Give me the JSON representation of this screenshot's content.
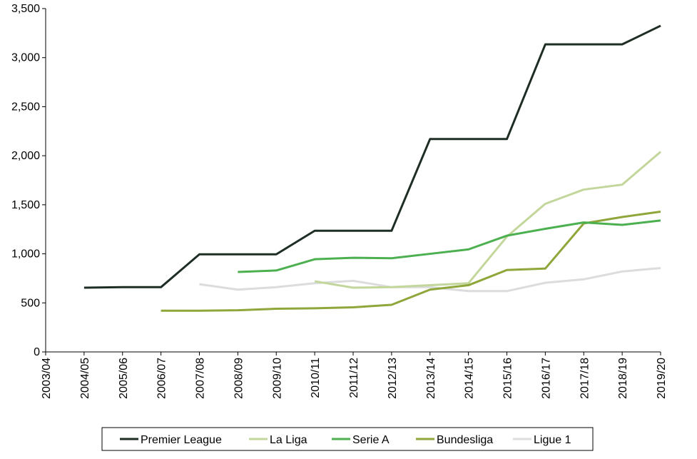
{
  "chart_data": {
    "type": "line",
    "title": "",
    "xlabel": "",
    "ylabel": "",
    "categories": [
      "2003/04",
      "2004/05",
      "2005/06",
      "2006/07",
      "2007/08",
      "2008/09",
      "2009/10",
      "2010/11",
      "2011/12",
      "2012/13",
      "2013/14",
      "2014/15",
      "2015/16",
      "2016/17",
      "2017/18",
      "2018/19",
      "2019/20"
    ],
    "ylim": [
      0,
      3500
    ],
    "yticks": [
      0,
      500,
      1000,
      1500,
      2000,
      2500,
      3000,
      3500
    ],
    "ytick_labels": [
      "0",
      "500",
      "1,000",
      "1,500",
      "2,000",
      "2,500",
      "3,000",
      "3,500"
    ],
    "grid": false,
    "legend_position": "bottom",
    "series": [
      {
        "name": "Premier League",
        "color": "#1f2e25",
        "values": [
          null,
          655,
          660,
          660,
          995,
          995,
          995,
          1235,
          1235,
          1235,
          2170,
          2170,
          2170,
          3135,
          3135,
          3135,
          3325
        ]
      },
      {
        "name": "La Liga",
        "color": "#c3d69b",
        "values": [
          null,
          null,
          null,
          null,
          null,
          null,
          null,
          720,
          655,
          660,
          680,
          700,
          1175,
          1510,
          1655,
          1705,
          2040
        ]
      },
      {
        "name": "Serie A",
        "color": "#4cb050",
        "values": [
          null,
          null,
          null,
          null,
          null,
          815,
          830,
          945,
          960,
          955,
          1000,
          1045,
          1185,
          1255,
          1320,
          1295,
          1340
        ]
      },
      {
        "name": "Bundesliga",
        "color": "#8ea63a",
        "values": [
          null,
          null,
          null,
          420,
          420,
          425,
          440,
          445,
          455,
          480,
          635,
          680,
          835,
          850,
          1310,
          1375,
          1430
        ]
      },
      {
        "name": "Ligue 1",
        "color": "#dcdcdc",
        "values": [
          null,
          null,
          null,
          null,
          690,
          635,
          660,
          700,
          725,
          660,
          660,
          620,
          620,
          705,
          740,
          820,
          855
        ]
      }
    ]
  }
}
